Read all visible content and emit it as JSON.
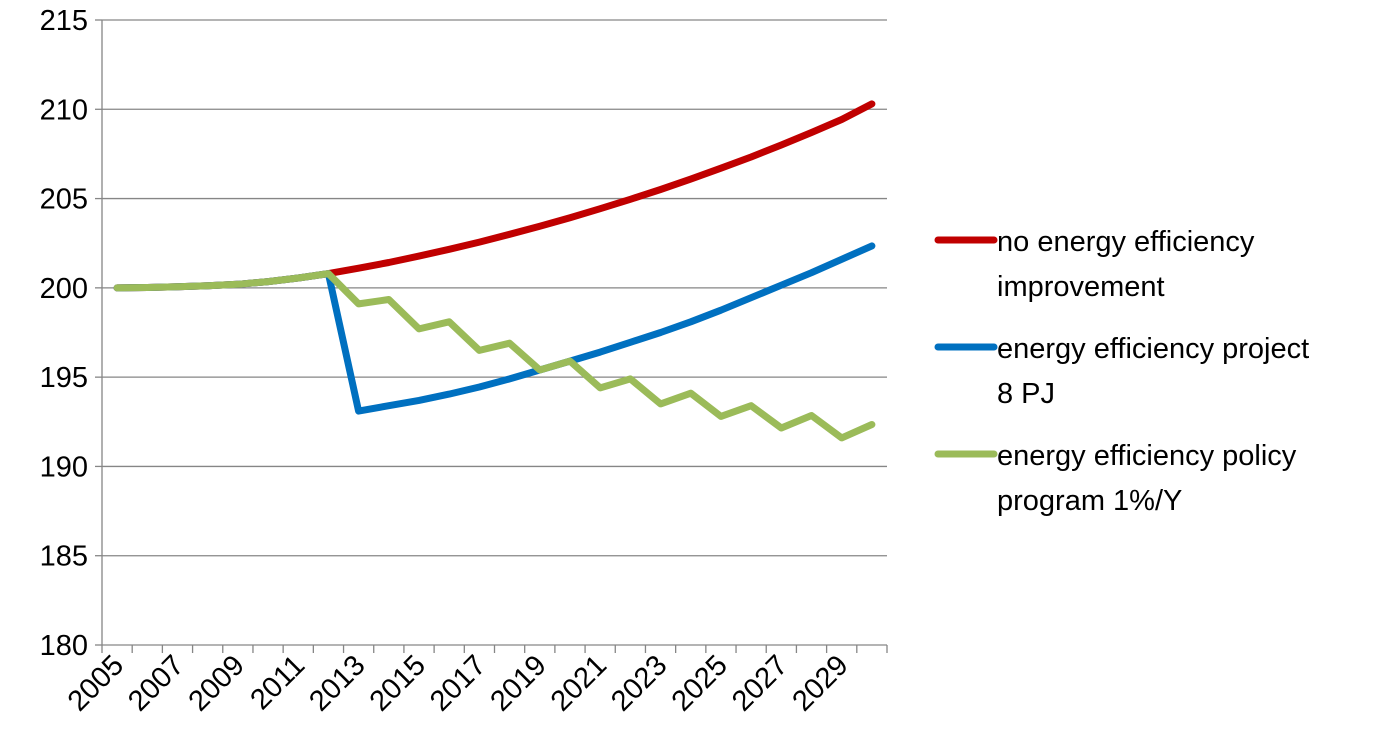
{
  "chart_data": {
    "type": "line",
    "title": "",
    "xlabel": "",
    "ylabel": "",
    "ylim": [
      180,
      215
    ],
    "yticks": [
      180,
      185,
      190,
      195,
      200,
      205,
      210,
      215
    ],
    "x": [
      2005,
      2006,
      2007,
      2008,
      2009,
      2010,
      2011,
      2012,
      2013,
      2014,
      2015,
      2016,
      2017,
      2018,
      2019,
      2020,
      2021,
      2022,
      2023,
      2024,
      2025,
      2026,
      2027,
      2028,
      2029,
      2030
    ],
    "xtick_labels": [
      "2005",
      "2007",
      "2009",
      "2011",
      "2013",
      "2015",
      "2017",
      "2019",
      "2021",
      "2023",
      "2025",
      "2027",
      "2029"
    ],
    "grid": "horizontal",
    "legend_position": "right",
    "series": [
      {
        "name": "no energy efficiency improvement",
        "legend_lines": [
          "no energy efficiency",
          "improvement"
        ],
        "color": "#C00000",
        "values": [
          200.0,
          200.02,
          200.06,
          200.12,
          200.2,
          200.35,
          200.55,
          200.8,
          201.1,
          201.42,
          201.78,
          202.16,
          202.56,
          203.0,
          203.45,
          203.93,
          204.43,
          204.96,
          205.51,
          206.09,
          206.7,
          207.33,
          208.0,
          208.7,
          209.43,
          210.3
        ]
      },
      {
        "name": "energy efficiency project 8 PJ",
        "legend_lines": [
          "energy efficiency project",
          "8 PJ"
        ],
        "color": "#0070C0",
        "values": [
          200.0,
          200.02,
          200.06,
          200.12,
          200.2,
          200.35,
          200.55,
          200.8,
          193.1,
          193.4,
          193.7,
          194.05,
          194.45,
          194.9,
          195.4,
          195.9,
          196.4,
          196.95,
          197.5,
          198.1,
          198.75,
          199.45,
          200.15,
          200.85,
          201.6,
          202.35
        ]
      },
      {
        "name": "energy efficiency policy program 1%/Y",
        "legend_lines": [
          "energy efficiency policy",
          "program 1%/Y"
        ],
        "color": "#9BBB59",
        "values": [
          200.0,
          200.02,
          200.06,
          200.12,
          200.2,
          200.35,
          200.55,
          200.8,
          199.1,
          199.35,
          197.7,
          198.1,
          196.5,
          196.9,
          195.4,
          195.9,
          194.4,
          194.9,
          193.5,
          194.1,
          192.8,
          193.4,
          192.15,
          192.85,
          191.6,
          192.35
        ]
      }
    ]
  }
}
